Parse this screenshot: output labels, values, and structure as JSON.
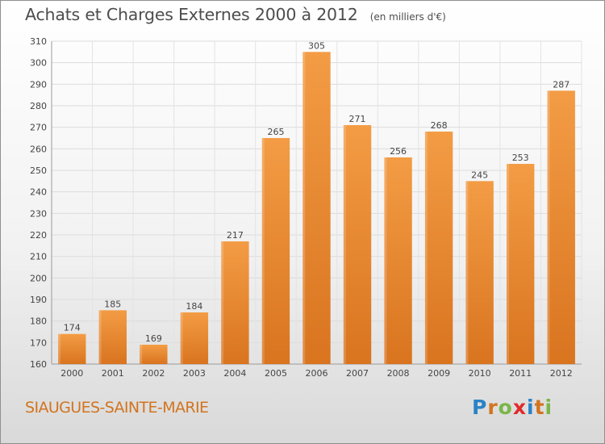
{
  "header": {
    "title": "Achats et Charges Externes 2000 à 2012",
    "subtitle": "(en milliers d'€)"
  },
  "footer": {
    "commune": "SIAUGUES-SAINTE-MARIE",
    "logo_text": "Proxiti",
    "logo_colors": [
      "#2a83c6",
      "#d2741f",
      "#7ab648",
      "#e12a2a",
      "#2a83c6",
      "#d2741f",
      "#7ab648"
    ]
  },
  "chart_data": {
    "type": "bar",
    "categories": [
      "2000",
      "2001",
      "2002",
      "2003",
      "2004",
      "2005",
      "2006",
      "2007",
      "2008",
      "2009",
      "2010",
      "2011",
      "2012"
    ],
    "values": [
      174,
      185,
      169,
      184,
      217,
      265,
      305,
      271,
      256,
      268,
      245,
      253,
      287
    ],
    "ylim": [
      160,
      310
    ],
    "yticks": [
      160,
      170,
      180,
      190,
      200,
      210,
      220,
      230,
      240,
      250,
      260,
      270,
      280,
      290,
      300,
      310
    ],
    "grid": true,
    "bar_color": "#f39c45",
    "bar_color_dark": "#d9741f"
  }
}
